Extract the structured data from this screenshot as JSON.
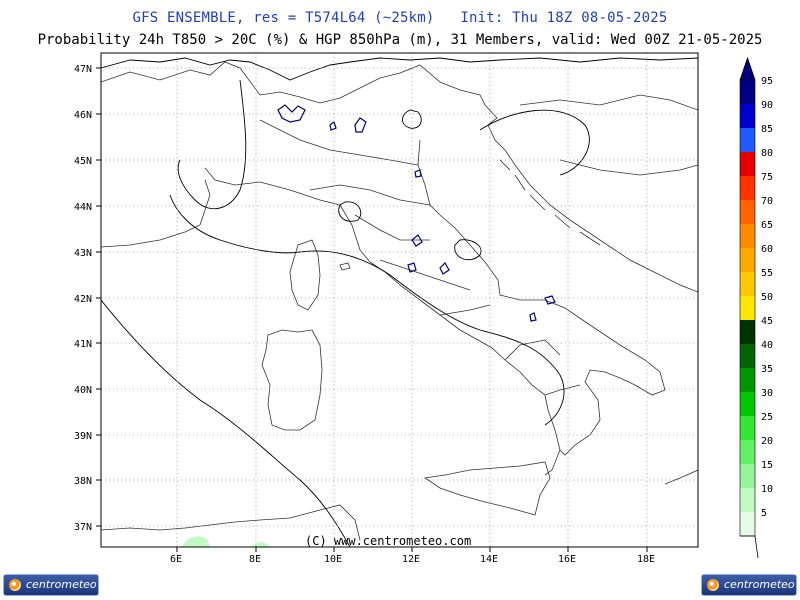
{
  "header": {
    "line1": "GFS ENSEMBLE, res = T574L64 (~25km)   Init: Thu 18Z 08-05-2025",
    "line2": "Probability 24h T850 > 20C (%) & HGP 850hPa (m), 31 Members, valid: Wed 00Z 21-05-2025"
  },
  "map": {
    "lat_labels": [
      "47N",
      "46N",
      "45N",
      "44N",
      "43N",
      "42N",
      "41N",
      "40N",
      "39N",
      "38N",
      "37N"
    ],
    "lon_labels": [
      "6E",
      "8E",
      "10E",
      "12E",
      "14E",
      "16E",
      "18E"
    ],
    "copyright": "(C) www.centrometeo.com",
    "land_color": "#ffffff",
    "coast_color": "#333333",
    "contour_color": "#000000",
    "probability_outline_color": "#00007f"
  },
  "legend": {
    "levels": [
      {
        "value": "95",
        "color": "#000080"
      },
      {
        "value": "90",
        "color": "#0000cd"
      },
      {
        "value": "85",
        "color": "#1e5aff"
      },
      {
        "value": "80",
        "color": "#e60000"
      },
      {
        "value": "75",
        "color": "#ff3200"
      },
      {
        "value": "70",
        "color": "#ff6400"
      },
      {
        "value": "65",
        "color": "#ff8c00"
      },
      {
        "value": "60",
        "color": "#ffaa00"
      },
      {
        "value": "55",
        "color": "#ffc800"
      },
      {
        "value": "50",
        "color": "#ffe600"
      },
      {
        "value": "45",
        "color": "#003200"
      },
      {
        "value": "40",
        "color": "#006400"
      },
      {
        "value": "35",
        "color": "#009600"
      },
      {
        "value": "30",
        "color": "#00c800"
      },
      {
        "value": "25",
        "color": "#32e632"
      },
      {
        "value": "20",
        "color": "#64f064"
      },
      {
        "value": "15",
        "color": "#96f596"
      },
      {
        "value": "10",
        "color": "#c3fac3"
      },
      {
        "value": "5",
        "color": "#e6fce6"
      }
    ]
  },
  "logos": {
    "left_text": "centrometeo",
    "right_text": "centrometeo"
  }
}
